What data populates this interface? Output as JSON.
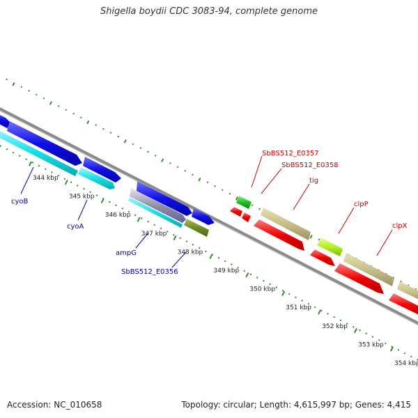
{
  "title": "Shigella boydii CDC 3083-94, complete genome",
  "accession": "Accession: NC_010658",
  "summary": "Topology: circular; Length: 4,615,997 bp; Genes: 4,415",
  "colors": {
    "backbone": "#8a8a8a",
    "tick_major": "#2e8b2e",
    "tick_minor": "#2e8b2e",
    "label_forward": "#0000aa",
    "label_reverse": "#cc0000"
  },
  "ticks": [
    {
      "kbp": 344,
      "label": "344 kbp"
    },
    {
      "kbp": 345,
      "label": "345 kbp"
    },
    {
      "kbp": 346,
      "label": "346 kbp"
    },
    {
      "kbp": 347,
      "label": "347 kbp"
    },
    {
      "kbp": 348,
      "label": "348 kbp"
    },
    {
      "kbp": 349,
      "label": "349 kbp"
    },
    {
      "kbp": 350,
      "label": "350 kbp"
    },
    {
      "kbp": 351,
      "label": "351 kbp"
    },
    {
      "kbp": 352,
      "label": "352 kbp"
    },
    {
      "kbp": 353,
      "label": "353 kbp"
    },
    {
      "kbp": 354,
      "label": "354 kbp"
    }
  ],
  "gene_labels": [
    {
      "text": "cyoB",
      "strand": "forward"
    },
    {
      "text": "cyoA",
      "strand": "forward"
    },
    {
      "text": "ampG",
      "strand": "forward"
    },
    {
      "text": "SbBS512_E0356",
      "strand": "forward"
    },
    {
      "text": "SbBS512_E0357",
      "strand": "reverse"
    },
    {
      "text": "SbBS512_E0358",
      "strand": "reverse"
    },
    {
      "text": "tig",
      "strand": "reverse"
    },
    {
      "text": "clpP",
      "strand": "reverse"
    },
    {
      "text": "clpX",
      "strand": "reverse"
    }
  ]
}
